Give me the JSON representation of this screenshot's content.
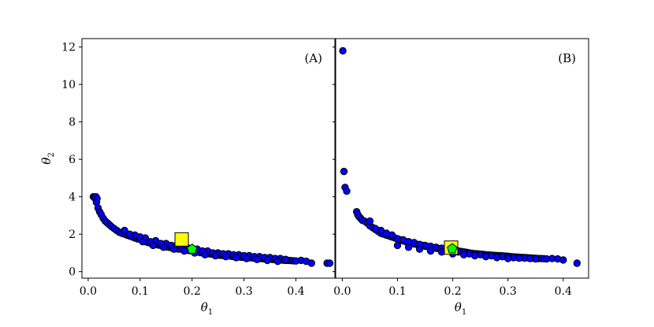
{
  "chart_data": [
    {
      "type": "scatter",
      "panel_label": "(A)",
      "xlabel": "θ",
      "xlabel_sub": "1",
      "ylabel": "θ",
      "ylabel_sub": "2",
      "xlim": [
        -0.012,
        0.475
      ],
      "ylim": [
        -0.35,
        12.45
      ],
      "xticks": [
        0.0,
        0.1,
        0.2,
        0.3,
        0.4
      ],
      "xtick_labels": [
        "0.0",
        "0.1",
        "0.2",
        "0.3",
        "0.4"
      ],
      "yticks": [
        0,
        2,
        4,
        6,
        8,
        10,
        12
      ],
      "ytick_labels": [
        "0",
        "2",
        "4",
        "6",
        "8",
        "10",
        "12"
      ],
      "point_color": "#0000ff",
      "samples": {
        "name": "",
        "x": [
          0.01,
          0.012,
          0.015,
          0.017,
          0.016,
          0.019,
          0.022,
          0.025,
          0.029,
          0.033,
          0.037,
          0.041,
          0.045,
          0.05,
          0.055,
          0.06,
          0.065,
          0.07,
          0.075,
          0.08,
          0.085,
          0.09,
          0.095,
          0.1,
          0.105,
          0.11,
          0.115,
          0.12,
          0.125,
          0.13,
          0.135,
          0.14,
          0.145,
          0.15,
          0.155,
          0.16,
          0.165,
          0.17,
          0.175,
          0.185,
          0.19,
          0.195,
          0.205,
          0.21,
          0.215,
          0.22,
          0.225,
          0.23,
          0.235,
          0.24,
          0.245,
          0.25,
          0.255,
          0.26,
          0.265,
          0.27,
          0.275,
          0.28,
          0.285,
          0.29,
          0.295,
          0.3,
          0.305,
          0.31,
          0.315,
          0.32,
          0.325,
          0.33,
          0.335,
          0.34,
          0.345,
          0.35,
          0.355,
          0.36,
          0.365,
          0.37,
          0.375,
          0.38,
          0.385,
          0.39,
          0.395,
          0.4,
          0.41,
          0.42,
          0.43,
          0.46,
          0.465,
          0.07,
          0.09,
          0.11,
          0.13,
          0.15,
          0.17,
          0.19,
          0.21,
          0.23,
          0.25,
          0.27,
          0.29,
          0.31,
          0.33,
          0.35,
          0.37,
          0.08,
          0.1,
          0.12,
          0.14,
          0.16,
          0.18,
          0.2,
          0.22,
          0.24,
          0.26,
          0.28,
          0.3,
          0.32,
          0.34,
          0.36,
          0.38,
          0.105,
          0.125,
          0.145,
          0.165,
          0.185,
          0.205,
          0.225,
          0.245,
          0.265,
          0.285,
          0.305,
          0.325,
          0.345,
          0.365
        ],
        "y": [
          4.0,
          3.95,
          4.0,
          3.9,
          3.7,
          3.4,
          3.2,
          3.05,
          2.85,
          2.7,
          2.6,
          2.5,
          2.4,
          2.3,
          2.2,
          2.1,
          2.05,
          2.0,
          1.95,
          1.9,
          1.85,
          1.8,
          1.75,
          1.72,
          1.68,
          1.6,
          1.56,
          1.52,
          1.48,
          1.45,
          1.42,
          1.4,
          1.35,
          1.32,
          1.3,
          1.28,
          1.25,
          1.22,
          1.2,
          1.18,
          1.15,
          1.12,
          1.08,
          1.05,
          1.02,
          1.0,
          0.98,
          0.96,
          0.94,
          0.92,
          0.9,
          0.88,
          0.87,
          0.86,
          0.85,
          0.84,
          0.82,
          0.8,
          0.79,
          0.78,
          0.77,
          0.76,
          0.75,
          0.74,
          0.73,
          0.72,
          0.71,
          0.7,
          0.69,
          0.68,
          0.67,
          0.66,
          0.65,
          0.64,
          0.63,
          0.62,
          0.61,
          0.6,
          0.6,
          0.59,
          0.58,
          0.57,
          0.6,
          0.55,
          0.45,
          0.45,
          0.45,
          2.2,
          1.95,
          1.8,
          1.65,
          1.5,
          1.4,
          1.3,
          1.2,
          1.1,
          1.0,
          0.95,
          0.9,
          0.85,
          0.8,
          0.75,
          0.7,
          2.0,
          1.85,
          1.6,
          1.5,
          1.4,
          1.3,
          1.2,
          1.1,
          1.0,
          0.95,
          0.9,
          0.85,
          0.8,
          0.75,
          0.7,
          0.65,
          1.6,
          1.4,
          1.3,
          1.2,
          1.1,
          1.0,
          0.9,
          0.85,
          0.8,
          0.75,
          0.7,
          0.65,
          0.6,
          0.55
        ]
      },
      "square_marker": {
        "x": 0.18,
        "y": 1.72,
        "color": "#ffff00"
      },
      "pentagon_marker": {
        "x": 0.2,
        "y": 1.2,
        "color": "#00ff00"
      }
    },
    {
      "type": "scatter",
      "panel_label": "(B)",
      "xlabel": "θ",
      "xlabel_sub": "1",
      "ylabel": "",
      "ylabel_sub": "",
      "xlim": [
        -0.012,
        0.446
      ],
      "ylim": [
        -0.35,
        12.45
      ],
      "xticks": [
        0.0,
        0.1,
        0.2,
        0.3,
        0.4
      ],
      "xtick_labels": [
        "0.0",
        "0.1",
        "0.2",
        "0.3",
        "0.4"
      ],
      "yticks": [
        0,
        2,
        4,
        6,
        8,
        10,
        12
      ],
      "ytick_labels": [],
      "point_color": "#0000ff",
      "samples": {
        "name": "",
        "x": [
          0.001,
          0.003,
          0.005,
          0.008,
          0.026,
          0.028,
          0.03,
          0.033,
          0.036,
          0.04,
          0.045,
          0.05,
          0.055,
          0.06,
          0.065,
          0.07,
          0.075,
          0.08,
          0.085,
          0.09,
          0.095,
          0.1,
          0.105,
          0.11,
          0.115,
          0.12,
          0.125,
          0.13,
          0.135,
          0.14,
          0.145,
          0.15,
          0.155,
          0.16,
          0.165,
          0.17,
          0.175,
          0.18,
          0.185,
          0.19,
          0.21,
          0.215,
          0.22,
          0.225,
          0.23,
          0.235,
          0.24,
          0.245,
          0.25,
          0.255,
          0.26,
          0.265,
          0.27,
          0.275,
          0.28,
          0.285,
          0.29,
          0.295,
          0.3,
          0.305,
          0.31,
          0.315,
          0.32,
          0.325,
          0.33,
          0.335,
          0.34,
          0.345,
          0.35,
          0.355,
          0.36,
          0.365,
          0.37,
          0.38,
          0.39,
          0.4,
          0.425,
          0.05,
          0.07,
          0.09,
          0.11,
          0.13,
          0.15,
          0.17,
          0.19,
          0.21,
          0.23,
          0.25,
          0.27,
          0.29,
          0.31,
          0.33,
          0.35,
          0.06,
          0.08,
          0.1,
          0.12,
          0.14,
          0.16,
          0.18,
          0.2,
          0.22,
          0.24,
          0.26,
          0.28,
          0.3,
          0.32,
          0.34,
          0.1,
          0.12,
          0.14,
          0.16,
          0.18,
          0.2,
          0.22,
          0.24,
          0.26,
          0.28,
          0.3
        ],
        "y": [
          11.8,
          5.35,
          4.5,
          4.3,
          3.2,
          3.05,
          2.95,
          2.85,
          2.75,
          2.7,
          2.6,
          2.45,
          2.35,
          2.25,
          2.15,
          2.05,
          2.0,
          1.95,
          1.9,
          1.85,
          1.8,
          1.75,
          1.7,
          1.65,
          1.6,
          1.55,
          1.52,
          1.48,
          1.45,
          1.42,
          1.4,
          1.36,
          1.33,
          1.3,
          1.28,
          1.25,
          1.22,
          1.2,
          1.18,
          1.15,
          1.1,
          1.08,
          1.05,
          1.03,
          1.0,
          0.98,
          0.96,
          0.95,
          0.93,
          0.92,
          0.9,
          0.89,
          0.88,
          0.87,
          0.86,
          0.85,
          0.84,
          0.83,
          0.82,
          0.8,
          0.79,
          0.78,
          0.77,
          0.76,
          0.75,
          0.74,
          0.73,
          0.72,
          0.71,
          0.7,
          0.7,
          0.69,
          0.68,
          0.7,
          0.68,
          0.62,
          0.45,
          2.7,
          2.2,
          1.95,
          1.7,
          1.55,
          1.4,
          1.3,
          1.2,
          1.05,
          0.95,
          0.9,
          0.85,
          0.8,
          0.75,
          0.72,
          0.68,
          2.3,
          2.05,
          1.75,
          1.6,
          1.45,
          1.35,
          1.25,
          1.1,
          1.0,
          0.92,
          0.88,
          0.82,
          0.78,
          0.72,
          0.7,
          1.4,
          1.3,
          1.2,
          1.1,
          1.05,
          0.95,
          0.9,
          0.85,
          0.8,
          0.75,
          0.7
        ]
      },
      "square_marker": {
        "x": 0.197,
        "y": 1.28,
        "color": "#ffff00"
      },
      "pentagon_marker": {
        "x": 0.199,
        "y": 1.22,
        "color": "#00ff00"
      }
    }
  ]
}
